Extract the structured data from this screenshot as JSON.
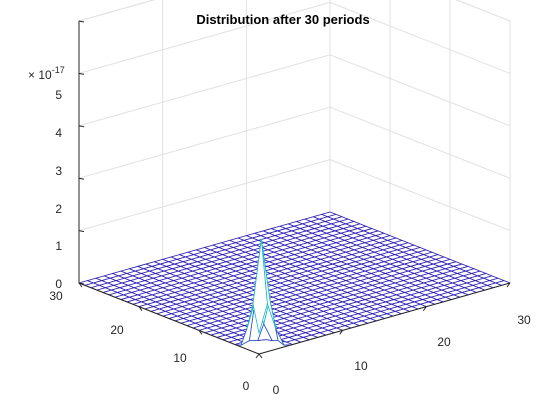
{
  "chart_data": {
    "type": "surface",
    "title": "Distribution after 30 periods",
    "z_exponent_label": "× 10",
    "z_exponent_power": "-17",
    "x_ticks": [
      "0",
      "10",
      "20",
      "30"
    ],
    "y_ticks": [
      "0",
      "10",
      "20",
      "30"
    ],
    "z_ticks": [
      "0",
      "1",
      "2",
      "3",
      "4",
      "5"
    ],
    "xlim": [
      0,
      30
    ],
    "ylim": [
      0,
      30
    ],
    "zlim": [
      0,
      5
    ],
    "z_scale": 1e-17,
    "grid": true,
    "grid_size": 30,
    "peak": {
      "x": 1,
      "y": 1,
      "z": 2.1
    },
    "colormap": [
      "#2a1fb4",
      "#1f6fd8",
      "#13b8c8",
      "#7dd89a",
      "#f0f23a"
    ],
    "grid_line_color": "#e1e1e1",
    "axis_color": "#262626"
  }
}
